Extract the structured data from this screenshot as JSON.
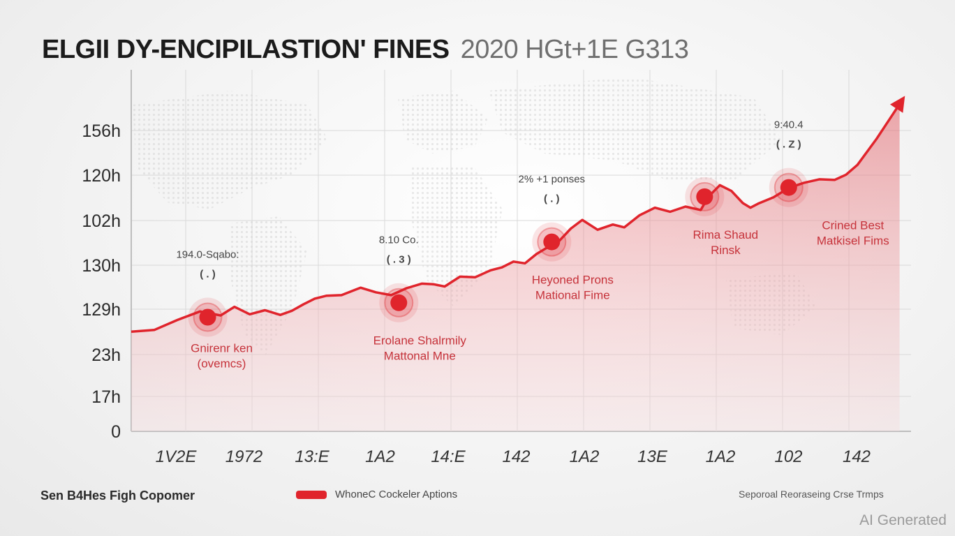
{
  "title": {
    "main": "ELGII DY-ENCIPILASTION' FINES",
    "sub": "2020 HGt+1E G313"
  },
  "colors": {
    "accent": "#e0242c",
    "grid": "#d9d9d9",
    "area": "#f2c3c6",
    "text": "#1b1b1b"
  },
  "chart_data": {
    "type": "line",
    "y_tick_labels": [
      "156h",
      "120h",
      "102h",
      "130h",
      "129h",
      "23h",
      "17h",
      "0"
    ],
    "x_tick_labels": [
      "1V2E",
      "1972",
      "13:E",
      "1A2",
      "14:E",
      "142",
      "1A2",
      "13E",
      "1A2",
      "102",
      "142"
    ],
    "grid": true,
    "series": [
      {
        "x": [
          0,
          0.3,
          0.6,
          0.9,
          1.17,
          1.35,
          1.55,
          1.75,
          1.95,
          2.1,
          2.25,
          2.4,
          2.55,
          2.75,
          3.0,
          3.2,
          3.4,
          3.6,
          3.8,
          3.95,
          4.1,
          4.3,
          4.5,
          4.7,
          4.85,
          5.0,
          5.15,
          5.3,
          5.45,
          5.6,
          5.75,
          5.9,
          6.1,
          6.3,
          6.45,
          6.65,
          6.85,
          7.05,
          7.25,
          7.45,
          7.55,
          7.7,
          7.85,
          8.0,
          8.1,
          8.2,
          8.4,
          8.6,
          8.8,
          9.0,
          9.2,
          9.35,
          9.5,
          9.75,
          10.05
        ],
        "y": [
          17.2,
          17.5,
          19.2,
          20.7,
          20.0,
          21.5,
          20.2,
          20.9,
          20.1,
          20.8,
          21.9,
          22.9,
          23.4,
          23.5,
          24.8,
          24.0,
          23.5,
          24.7,
          25.5,
          25.4,
          25.0,
          26.7,
          26.6,
          27.8,
          28.3,
          29.3,
          29.0,
          30.6,
          31.8,
          32.9,
          35.0,
          36.5,
          34.8,
          35.7,
          35.2,
          37.3,
          38.6,
          37.9,
          38.8,
          38.2,
          40.5,
          42.5,
          41.5,
          39.4,
          38.6,
          39.3,
          40.4,
          42.0,
          42.9,
          43.5,
          43.4,
          44.3,
          46.0,
          50.5,
          56.5
        ]
      }
    ],
    "highlighted_points": [
      {
        "x": 1.0,
        "y": 19.7,
        "label": "194.0-Sqabo:",
        "bubble": "( . )",
        "caption": "Gnirenr ken (ovemcs)"
      },
      {
        "x": 3.5,
        "y": 22.2,
        "label": "8.10 Co.",
        "bubble": "( . 3 )",
        "caption": "Erolane Shalrmily Mattonal Mne"
      },
      {
        "x": 5.5,
        "y": 32.7,
        "label": "2% +1 ponses",
        "bubble": "( . )",
        "caption": "Heyoned Prons Mational Fime"
      },
      {
        "x": 7.5,
        "y": 40.5,
        "label": "",
        "bubble": "",
        "caption": "Rima Shaud Rinsk"
      },
      {
        "x": 8.6,
        "y": 42.1,
        "label": "9:40.4",
        "bubble": "( . Z )",
        "caption": "Crined Best Matkisel Fims"
      }
    ]
  },
  "footer": {
    "left": "Sen B4Hes Figh Copomer",
    "legend": "WhoneC Cockeler Aptions",
    "right": "Seporoal Reoraseing Crse Trmps"
  },
  "watermark": "AI Generated"
}
